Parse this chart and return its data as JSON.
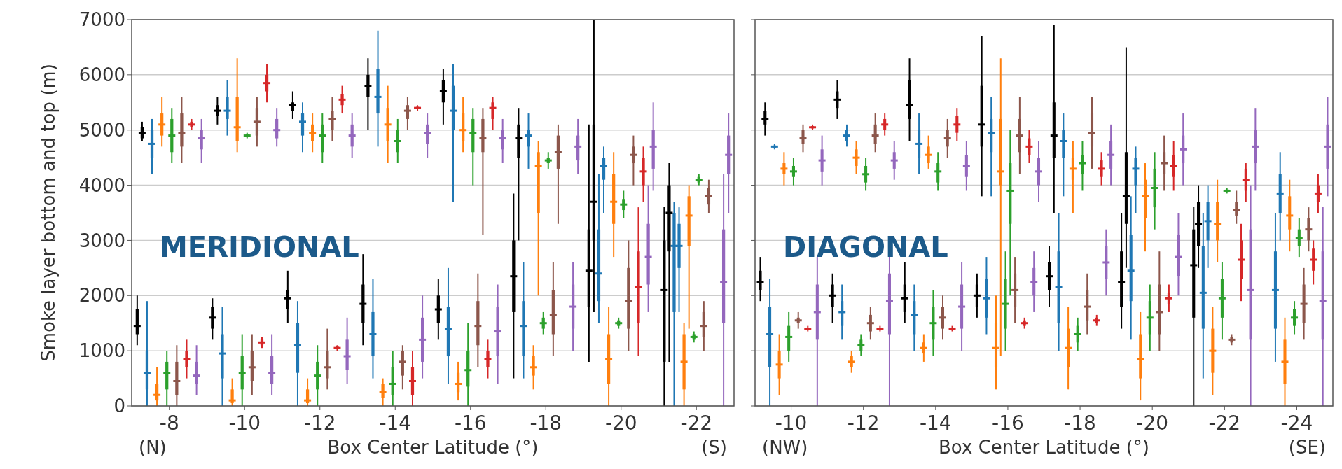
{
  "chart_data": [
    {
      "type": "box",
      "xlabel": "Box Center Latitude (°)",
      "ylabel": "Smoke layer bottom and top (m)",
      "annotations": [
        "(N)",
        "(S)",
        "MERIDIONAL"
      ],
      "categories": [
        "-8",
        "-10",
        "-12",
        "-14",
        "-16",
        "-18",
        "-20",
        "-22"
      ],
      "ylim": [
        0,
        7000
      ],
      "yticks": [
        0,
        1000,
        2000,
        3000,
        4000,
        5000,
        6000,
        7000
      ],
      "grid": "y",
      "series": [
        {
          "color": "#000000",
          "boxes": [
            {
              "low": 1100,
              "q1": 1300,
              "median": 1450,
              "q3": 1750,
              "high": 2000
            },
            {
              "low": 1200,
              "q1": 1400,
              "median": 1600,
              "q3": 1800,
              "high": 1950
            },
            {
              "low": 1500,
              "q1": 1750,
              "median": 1950,
              "q3": 2100,
              "high": 2450
            },
            {
              "low": 1100,
              "q1": 1500,
              "median": 1850,
              "q3": 2200,
              "high": 2750
            },
            {
              "low": 1200,
              "q1": 1500,
              "median": 1750,
              "q3": 2000,
              "high": 2300
            },
            {
              "low": 500,
              "q1": 1700,
              "median": 2350,
              "q3": 3000,
              "high": 3850
            },
            {
              "low": 800,
              "q1": 1800,
              "median": 2450,
              "q3": 3200,
              "high": 5100
            },
            {
              "low": 0,
              "q1": 800,
              "median": 2100,
              "q3": 3000,
              "high": 3600
            }
          ]
        },
        {
          "color": "#1f77b4",
          "boxes": [
            {
              "low": 0,
              "q1": 300,
              "median": 600,
              "q3": 1000,
              "high": 1900
            },
            {
              "low": 0,
              "q1": 500,
              "median": 950,
              "q3": 1300,
              "high": 1800
            },
            {
              "low": 0,
              "q1": 600,
              "median": 1100,
              "q3": 1500,
              "high": 1900
            },
            {
              "low": 500,
              "q1": 900,
              "median": 1300,
              "q3": 1700,
              "high": 2300
            },
            {
              "low": 400,
              "q1": 900,
              "median": 1400,
              "q3": 1800,
              "high": 2500
            },
            {
              "low": 500,
              "q1": 900,
              "median": 1450,
              "q3": 1900,
              "high": 2600
            },
            {
              "low": 1500,
              "q1": 1900,
              "median": 2400,
              "q3": 3200,
              "high": 4200
            },
            {
              "low": 0,
              "q1": 1700,
              "median": 2900,
              "q3": 3500,
              "high": 3700
            }
          ]
        },
        {
          "color": "#ff7f0e",
          "boxes": [
            {
              "low": 0,
              "q1": 100,
              "median": 200,
              "q3": 400,
              "high": 700
            },
            {
              "low": 0,
              "q1": 50,
              "median": 100,
              "q3": 300,
              "high": 500
            },
            {
              "low": 0,
              "q1": 50,
              "median": 100,
              "q3": 300,
              "high": 500
            },
            {
              "low": 0,
              "q1": 150,
              "median": 250,
              "q3": 400,
              "high": 500
            },
            {
              "low": 100,
              "q1": 250,
              "median": 400,
              "q3": 600,
              "high": 800
            },
            {
              "low": 300,
              "q1": 550,
              "median": 700,
              "q3": 900,
              "high": 1100
            },
            {
              "low": 0,
              "q1": 400,
              "median": 850,
              "q3": 1300,
              "high": 1800
            },
            {
              "low": 0,
              "q1": 300,
              "median": 800,
              "q3": 1300,
              "high": 1500
            }
          ]
        },
        {
          "color": "#2ca02c",
          "boxes": [
            {
              "low": 0,
              "q1": 300,
              "median": 600,
              "q3": 800,
              "high": 1000
            },
            {
              "low": 0,
              "q1": 300,
              "median": 600,
              "q3": 900,
              "high": 1300
            },
            {
              "low": 0,
              "q1": 300,
              "median": 550,
              "q3": 800,
              "high": 1100
            },
            {
              "low": 0,
              "q1": 200,
              "median": 400,
              "q3": 700,
              "high": 1000
            },
            {
              "low": 0,
              "q1": 350,
              "median": 650,
              "q3": 1000,
              "high": 1500
            },
            {
              "low": 1300,
              "q1": 1400,
              "median": 1500,
              "q3": 1600,
              "high": 1700
            },
            {
              "low": 1400,
              "q1": 1450,
              "median": 1500,
              "q3": 1550,
              "high": 1600
            },
            {
              "low": 1150,
              "q1": 1200,
              "median": 1250,
              "q3": 1300,
              "high": 1350
            }
          ]
        },
        {
          "color": "#8c564b",
          "boxes": [
            {
              "low": 0,
              "q1": 200,
              "median": 450,
              "q3": 800,
              "high": 1100
            },
            {
              "low": 200,
              "q1": 450,
              "median": 700,
              "q3": 1000,
              "high": 1300
            },
            {
              "low": 300,
              "q1": 500,
              "median": 700,
              "q3": 1000,
              "high": 1400
            },
            {
              "low": 300,
              "q1": 550,
              "median": 800,
              "q3": 1000,
              "high": 1100
            },
            {
              "low": 700,
              "q1": 1100,
              "median": 1450,
              "q3": 1900,
              "high": 2400
            },
            {
              "low": 900,
              "q1": 1300,
              "median": 1650,
              "q3": 2100,
              "high": 2600
            },
            {
              "low": 1000,
              "q1": 1400,
              "median": 1900,
              "q3": 2500,
              "high": 3000
            },
            {
              "low": 1000,
              "q1": 1250,
              "median": 1450,
              "q3": 1700,
              "high": 1900
            }
          ]
        },
        {
          "color": "#d62728",
          "boxes": [
            {
              "low": 500,
              "q1": 700,
              "median": 850,
              "q3": 1000,
              "high": 1200
            },
            {
              "low": 1050,
              "q1": 1100,
              "median": 1150,
              "q3": 1200,
              "high": 1250
            },
            {
              "low": 1000,
              "q1": 1030,
              "median": 1050,
              "q3": 1080,
              "high": 1100
            },
            {
              "low": 0,
              "q1": 200,
              "median": 450,
              "q3": 700,
              "high": 1000
            },
            {
              "low": 500,
              "q1": 700,
              "median": 850,
              "q3": 1000,
              "high": 1200
            },
            null,
            {
              "low": 900,
              "q1": 1500,
              "median": 2150,
              "q3": 2800,
              "high": 3600
            },
            null
          ]
        },
        {
          "color": "#9467bd",
          "boxes": [
            {
              "low": 200,
              "q1": 400,
              "median": 550,
              "q3": 800,
              "high": 1100
            },
            {
              "low": 200,
              "q1": 400,
              "median": 600,
              "q3": 900,
              "high": 1300
            },
            {
              "low": 400,
              "q1": 650,
              "median": 900,
              "q3": 1200,
              "high": 1600
            },
            {
              "low": 500,
              "q1": 800,
              "median": 1200,
              "q3": 1600,
              "high": 2000
            },
            {
              "low": 400,
              "q1": 900,
              "median": 1350,
              "q3": 1800,
              "high": 2200
            },
            {
              "low": 1000,
              "q1": 1400,
              "median": 1800,
              "q3": 2200,
              "high": 2600
            },
            {
              "low": 1700,
              "q1": 2200,
              "median": 2700,
              "q3": 3300,
              "high": 4000
            },
            {
              "low": 0,
              "q1": 1500,
              "median": 2250,
              "q3": 3200,
              "high": 4200
            }
          ]
        },
        {
          "color": "#000000",
          "boxes": [
            {
              "low": 4800,
              "q1": 4850,
              "median": 4950,
              "q3": 5050,
              "high": 5150
            },
            {
              "low": 5100,
              "q1": 5250,
              "median": 5350,
              "q3": 5450,
              "high": 5600
            },
            {
              "low": 5200,
              "q1": 5350,
              "median": 5450,
              "q3": 5500,
              "high": 5700
            },
            {
              "low": 5000,
              "q1": 5600,
              "median": 5800,
              "q3": 6000,
              "high": 6300
            },
            {
              "low": 5100,
              "q1": 5500,
              "median": 5700,
              "q3": 5900,
              "high": 6100
            },
            {
              "low": 3000,
              "q1": 4500,
              "median": 4850,
              "q3": 5100,
              "high": 5400
            },
            {
              "low": 1700,
              "q1": 3000,
              "median": 3700,
              "q3": 5100,
              "high": 7000
            },
            {
              "low": 800,
              "q1": 2800,
              "median": 3500,
              "q3": 4000,
              "high": 4400
            }
          ]
        },
        {
          "color": "#1f77b4",
          "boxes": [
            {
              "low": 4200,
              "q1": 4500,
              "median": 4750,
              "q3": 5000,
              "high": 5200
            },
            {
              "low": 4900,
              "q1": 5200,
              "median": 5350,
              "q3": 5600,
              "high": 5900
            },
            {
              "low": 4600,
              "q1": 4900,
              "median": 5150,
              "q3": 5300,
              "high": 5500
            },
            {
              "low": 4700,
              "q1": 5300,
              "median": 5600,
              "q3": 6100,
              "high": 6800
            },
            {
              "low": 3700,
              "q1": 5000,
              "median": 5350,
              "q3": 5800,
              "high": 6200
            },
            {
              "low": 4300,
              "q1": 4700,
              "median": 4900,
              "q3": 5000,
              "high": 5300
            },
            {
              "low": 3500,
              "q1": 4100,
              "median": 4350,
              "q3": 4500,
              "high": 4700
            },
            {
              "low": 1700,
              "q1": 2500,
              "median": 2900,
              "q3": 3300,
              "high": 3600
            }
          ]
        },
        {
          "color": "#ff7f0e",
          "boxes": [
            {
              "low": 4700,
              "q1": 4900,
              "median": 5100,
              "q3": 5300,
              "high": 5600
            },
            {
              "low": 4600,
              "q1": 4800,
              "median": 5050,
              "q3": 5600,
              "high": 6300
            },
            {
              "low": 4600,
              "q1": 4800,
              "median": 4950,
              "q3": 5100,
              "high": 5300
            },
            {
              "low": 4400,
              "q1": 4800,
              "median": 5100,
              "q3": 5400,
              "high": 5800
            },
            {
              "low": 4600,
              "q1": 4800,
              "median": 5000,
              "q3": 5300,
              "high": 5600
            },
            {
              "low": 2000,
              "q1": 3500,
              "median": 4350,
              "q3": 4600,
              "high": 4800
            },
            {
              "low": 2700,
              "q1": 3300,
              "median": 3700,
              "q3": 4200,
              "high": 4600
            },
            {
              "low": 1400,
              "q1": 2900,
              "median": 3450,
              "q3": 3800,
              "high": 4000
            }
          ]
        },
        {
          "color": "#2ca02c",
          "boxes": [
            {
              "low": 4400,
              "q1": 4600,
              "median": 4900,
              "q3": 5200,
              "high": 5400
            },
            {
              "low": 4850,
              "q1": 4870,
              "median": 4900,
              "q3": 4930,
              "high": 4950
            },
            {
              "low": 4400,
              "q1": 4600,
              "median": 4900,
              "q3": 5100,
              "high": 5300
            },
            {
              "low": 4400,
              "q1": 4600,
              "median": 4800,
              "q3": 5000,
              "high": 5200
            },
            {
              "low": 4000,
              "q1": 4600,
              "median": 4950,
              "q3": 5200,
              "high": 5400
            },
            {
              "low": 4300,
              "q1": 4400,
              "median": 4450,
              "q3": 4500,
              "high": 4600
            },
            {
              "low": 3400,
              "q1": 3550,
              "median": 3650,
              "q3": 3750,
              "high": 3900
            },
            {
              "low": 4000,
              "q1": 4050,
              "median": 4100,
              "q3": 4150,
              "high": 4200
            }
          ]
        },
        {
          "color": "#8c564b",
          "boxes": [
            {
              "low": 4400,
              "q1": 4700,
              "median": 4950,
              "q3": 5300,
              "high": 5600
            },
            {
              "low": 4700,
              "q1": 4900,
              "median": 5150,
              "q3": 5400,
              "high": 5600
            },
            {
              "low": 4800,
              "q1": 5000,
              "median": 5200,
              "q3": 5350,
              "high": 5600
            },
            {
              "low": 5000,
              "q1": 5200,
              "median": 5350,
              "q3": 5450,
              "high": 5600
            },
            {
              "low": 3100,
              "q1": 4600,
              "median": 4850,
              "q3": 5200,
              "high": 5400
            },
            {
              "low": 3300,
              "q1": 4300,
              "median": 4600,
              "q3": 4900,
              "high": 5100
            },
            {
              "low": 4000,
              "q1": 4400,
              "median": 4550,
              "q3": 4700,
              "high": 4900
            },
            {
              "low": 3500,
              "q1": 3650,
              "median": 3800,
              "q3": 3950,
              "high": 4100
            }
          ]
        },
        {
          "color": "#d62728",
          "boxes": [
            {
              "low": 5000,
              "q1": 5050,
              "median": 5100,
              "q3": 5150,
              "high": 5200
            },
            {
              "low": 5500,
              "q1": 5700,
              "median": 5850,
              "q3": 6000,
              "high": 6200
            },
            {
              "low": 5300,
              "q1": 5450,
              "median": 5550,
              "q3": 5650,
              "high": 5800
            },
            {
              "low": 5350,
              "q1": 5380,
              "median": 5400,
              "q3": 5420,
              "high": 5450
            },
            {
              "low": 5000,
              "q1": 5200,
              "median": 5400,
              "q3": 5500,
              "high": 5600
            },
            null,
            {
              "low": 3700,
              "q1": 4000,
              "median": 4250,
              "q3": 4500,
              "high": 4700
            },
            null
          ]
        },
        {
          "color": "#9467bd",
          "boxes": [
            {
              "low": 4400,
              "q1": 4650,
              "median": 4850,
              "q3": 5000,
              "high": 5200
            },
            {
              "low": 4700,
              "q1": 4850,
              "median": 5000,
              "q3": 5200,
              "high": 5400
            },
            {
              "low": 4500,
              "q1": 4700,
              "median": 4900,
              "q3": 5100,
              "high": 5300
            },
            {
              "low": 4500,
              "q1": 4750,
              "median": 4950,
              "q3": 5100,
              "high": 5300
            },
            {
              "low": 4400,
              "q1": 4650,
              "median": 4850,
              "q3": 5000,
              "high": 5200
            },
            {
              "low": 4200,
              "q1": 4450,
              "median": 4700,
              "q3": 4900,
              "high": 5200
            },
            {
              "low": 3900,
              "q1": 4300,
              "median": 4700,
              "q3": 5000,
              "high": 5500
            },
            {
              "low": 3500,
              "q1": 4200,
              "median": 4550,
              "q3": 4900,
              "high": 5300
            }
          ]
        }
      ]
    },
    {
      "type": "box",
      "xlabel": "Box Center Latitude (°)",
      "annotations": [
        "(NW)",
        "(SE)",
        "DIAGONAL"
      ],
      "categories": [
        "-10",
        "-12",
        "-14",
        "-16",
        "-18",
        "-20",
        "-22",
        "-24"
      ],
      "ylim": [
        0,
        7000
      ],
      "yticks": [
        0,
        1000,
        2000,
        3000,
        4000,
        5000,
        6000,
        7000
      ],
      "grid": "y",
      "tick_labels": "x",
      "series": [
        {
          "color": "#000000",
          "boxes": [
            {
              "low": 1900,
              "q1": 2100,
              "median": 2250,
              "q3": 2450,
              "high": 2700
            },
            {
              "low": 1500,
              "q1": 1800,
              "median": 2000,
              "q3": 2200,
              "high": 2400
            },
            {
              "low": 1500,
              "q1": 1700,
              "median": 1950,
              "q3": 2200,
              "high": 2600
            },
            {
              "low": 1600,
              "q1": 1800,
              "median": 2000,
              "q3": 2200,
              "high": 2400
            },
            {
              "low": 1800,
              "q1": 2100,
              "median": 2350,
              "q3": 2600,
              "high": 2900
            },
            {
              "low": 1400,
              "q1": 1800,
              "median": 2250,
              "q3": 2800,
              "high": 3500
            },
            {
              "low": 0,
              "q1": 1600,
              "median": 2550,
              "q3": 3200,
              "high": 3600
            },
            null
          ]
        },
        {
          "color": "#1f77b4",
          "boxes": [
            {
              "low": 0,
              "q1": 700,
              "median": 1300,
              "q3": 1800,
              "high": 2300
            },
            {
              "low": 1200,
              "q1": 1450,
              "median": 1700,
              "q3": 1900,
              "high": 2200
            },
            {
              "low": 1000,
              "q1": 1300,
              "median": 1650,
              "q3": 1900,
              "high": 2200
            },
            {
              "low": 1300,
              "q1": 1600,
              "median": 1950,
              "q3": 2300,
              "high": 2700
            },
            {
              "low": 1000,
              "q1": 1500,
              "median": 2150,
              "q3": 2800,
              "high": 3500
            },
            {
              "low": 1200,
              "q1": 1900,
              "median": 2450,
              "q3": 3100,
              "high": 3800
            },
            {
              "low": 500,
              "q1": 1400,
              "median": 2050,
              "q3": 2900,
              "high": 3500
            },
            {
              "low": 800,
              "q1": 1400,
              "median": 2100,
              "q3": 2800,
              "high": 3500
            }
          ]
        },
        {
          "color": "#ff7f0e",
          "boxes": [
            {
              "low": 200,
              "q1": 500,
              "median": 750,
              "q3": 1000,
              "high": 1300
            },
            {
              "low": 600,
              "q1": 700,
              "median": 800,
              "q3": 900,
              "high": 1000
            },
            {
              "low": 800,
              "q1": 950,
              "median": 1050,
              "q3": 1150,
              "high": 1300
            },
            {
              "low": 300,
              "q1": 700,
              "median": 1050,
              "q3": 1500,
              "high": 2000
            },
            {
              "low": 300,
              "q1": 700,
              "median": 1050,
              "q3": 1400,
              "high": 1800
            },
            {
              "low": 100,
              "q1": 500,
              "median": 850,
              "q3": 1300,
              "high": 1700
            },
            {
              "low": 200,
              "q1": 600,
              "median": 1000,
              "q3": 1400,
              "high": 1800
            },
            {
              "low": 0,
              "q1": 400,
              "median": 800,
              "q3": 1200,
              "high": 1600
            }
          ]
        },
        {
          "color": "#2ca02c",
          "boxes": [
            {
              "low": 800,
              "q1": 1000,
              "median": 1250,
              "q3": 1450,
              "high": 1700
            },
            {
              "low": 900,
              "q1": 1000,
              "median": 1100,
              "q3": 1200,
              "high": 1300
            },
            {
              "low": 900,
              "q1": 1200,
              "median": 1500,
              "q3": 1800,
              "high": 2100
            },
            {
              "low": 1000,
              "q1": 1400,
              "median": 1850,
              "q3": 2300,
              "high": 2800
            },
            {
              "low": 1000,
              "q1": 1150,
              "median": 1300,
              "q3": 1450,
              "high": 1600
            },
            {
              "low": 1000,
              "q1": 1300,
              "median": 1600,
              "q3": 1900,
              "high": 2200
            },
            {
              "low": 1200,
              "q1": 1600,
              "median": 1950,
              "q3": 2300,
              "high": 2600
            },
            {
              "low": 1300,
              "q1": 1450,
              "median": 1600,
              "q3": 1750,
              "high": 1900
            }
          ]
        },
        {
          "color": "#8c564b",
          "boxes": [
            {
              "low": 1400,
              "q1": 1500,
              "median": 1550,
              "q3": 1600,
              "high": 1700
            },
            {
              "low": 1200,
              "q1": 1350,
              "median": 1500,
              "q3": 1650,
              "high": 1800
            },
            {
              "low": 1200,
              "q1": 1400,
              "median": 1600,
              "q3": 1800,
              "high": 2000
            },
            {
              "low": 1500,
              "q1": 1800,
              "median": 2100,
              "q3": 2400,
              "high": 2700
            },
            {
              "low": 1300,
              "q1": 1550,
              "median": 1800,
              "q3": 2100,
              "high": 2400
            },
            {
              "low": 1000,
              "q1": 1300,
              "median": 1700,
              "q3": 2200,
              "high": 2800
            },
            {
              "low": 1100,
              "q1": 1150,
              "median": 1200,
              "q3": 1250,
              "high": 1300
            },
            {
              "low": 1200,
              "q1": 1500,
              "median": 1850,
              "q3": 2200,
              "high": 2500
            }
          ]
        },
        {
          "color": "#d62728",
          "boxes": [
            {
              "low": 1350,
              "q1": 1380,
              "median": 1400,
              "q3": 1420,
              "high": 1450
            },
            {
              "low": 1350,
              "q1": 1380,
              "median": 1400,
              "q3": 1420,
              "high": 1450
            },
            {
              "low": 1350,
              "q1": 1380,
              "median": 1400,
              "q3": 1420,
              "high": 1450
            },
            {
              "low": 1400,
              "q1": 1450,
              "median": 1500,
              "q3": 1550,
              "high": 1600
            },
            {
              "low": 1450,
              "q1": 1500,
              "median": 1550,
              "q3": 1600,
              "high": 1650
            },
            {
              "low": 1700,
              "q1": 1850,
              "median": 1950,
              "q3": 2050,
              "high": 2200
            },
            {
              "low": 1900,
              "q1": 2300,
              "median": 2650,
              "q3": 3000,
              "high": 3300
            },
            {
              "low": 2200,
              "q1": 2450,
              "median": 2650,
              "q3": 2850,
              "high": 3000
            }
          ]
        },
        {
          "color": "#9467bd",
          "boxes": [
            {
              "low": 0,
              "q1": 1200,
              "median": 1700,
              "q3": 2200,
              "high": 2700
            },
            {
              "low": 0,
              "q1": 1300,
              "median": 1900,
              "q3": 2400,
              "high": 2800
            },
            {
              "low": 1000,
              "q1": 1400,
              "median": 1800,
              "q3": 2200,
              "high": 2600
            },
            {
              "low": 1700,
              "q1": 2000,
              "median": 2250,
              "q3": 2500,
              "high": 2800
            },
            {
              "low": 2000,
              "q1": 2300,
              "median": 2600,
              "q3": 2900,
              "high": 3200
            },
            {
              "low": 2000,
              "q1": 2350,
              "median": 2700,
              "q3": 3100,
              "high": 3500
            },
            {
              "low": 0,
              "q1": 1200,
              "median": 2100,
              "q3": 3200,
              "high": 4000
            },
            {
              "low": 0,
              "q1": 1200,
              "median": 1900,
              "q3": 2800,
              "high": 3600
            }
          ]
        },
        {
          "color": "#000000",
          "boxes": [
            {
              "low": 4900,
              "q1": 5100,
              "median": 5200,
              "q3": 5350,
              "high": 5500
            },
            {
              "low": 5200,
              "q1": 5400,
              "median": 5550,
              "q3": 5700,
              "high": 5900
            },
            {
              "low": 4800,
              "q1": 5200,
              "median": 5450,
              "q3": 5900,
              "high": 6300
            },
            {
              "low": 3800,
              "q1": 4700,
              "median": 5100,
              "q3": 5800,
              "high": 6700
            },
            {
              "low": 3500,
              "q1": 4500,
              "median": 4900,
              "q3": 5500,
              "high": 6900
            },
            {
              "low": 2500,
              "q1": 3300,
              "median": 3800,
              "q3": 4600,
              "high": 6500
            },
            {
              "low": 2500,
              "q1": 2900,
              "median": 3300,
              "q3": 3700,
              "high": 4000
            },
            null
          ]
        },
        {
          "color": "#1f77b4",
          "boxes": [
            {
              "low": 4650,
              "q1": 4680,
              "median": 4700,
              "q3": 4720,
              "high": 4750
            },
            {
              "low": 4700,
              "q1": 4800,
              "median": 4900,
              "q3": 5000,
              "high": 5100
            },
            {
              "low": 4200,
              "q1": 4500,
              "median": 4750,
              "q3": 5000,
              "high": 5300
            },
            {
              "low": 3800,
              "q1": 4600,
              "median": 4950,
              "q3": 5200,
              "high": 5600
            },
            {
              "low": 3800,
              "q1": 4500,
              "median": 4800,
              "q3": 5000,
              "high": 5300
            },
            {
              "low": 3500,
              "q1": 4000,
              "median": 4300,
              "q3": 4500,
              "high": 4700
            },
            {
              "low": 2500,
              "q1": 3000,
              "median": 3350,
              "q3": 3700,
              "high": 4000
            },
            {
              "low": 3000,
              "q1": 3500,
              "median": 3850,
              "q3": 4200,
              "high": 4600
            }
          ]
        },
        {
          "color": "#ff7f0e",
          "boxes": [
            {
              "low": 4000,
              "q1": 4200,
              "median": 4300,
              "q3": 4400,
              "high": 4600
            },
            {
              "low": 4200,
              "q1": 4350,
              "median": 4500,
              "q3": 4650,
              "high": 4800
            },
            {
              "low": 4300,
              "q1": 4400,
              "median": 4550,
              "q3": 4700,
              "high": 4900
            },
            {
              "low": 900,
              "q1": 4000,
              "median": 4250,
              "q3": 5200,
              "high": 6300
            },
            {
              "low": 3500,
              "q1": 4100,
              "median": 4300,
              "q3": 4500,
              "high": 4800
            },
            {
              "low": 2800,
              "q1": 3400,
              "median": 3800,
              "q3": 4100,
              "high": 4400
            },
            {
              "low": 2600,
              "q1": 3000,
              "median": 3300,
              "q3": 3700,
              "high": 4100
            },
            {
              "low": 2800,
              "q1": 3200,
              "median": 3450,
              "q3": 3800,
              "high": 4100
            }
          ]
        },
        {
          "color": "#2ca02c",
          "boxes": [
            {
              "low": 4000,
              "q1": 4150,
              "median": 4250,
              "q3": 4350,
              "high": 4500
            },
            {
              "low": 3900,
              "q1": 4050,
              "median": 4200,
              "q3": 4350,
              "high": 4500
            },
            {
              "low": 3900,
              "q1": 4050,
              "median": 4250,
              "q3": 4400,
              "high": 4600
            },
            {
              "low": 2000,
              "q1": 3300,
              "median": 3900,
              "q3": 4400,
              "high": 5000
            },
            {
              "low": 3900,
              "q1": 4200,
              "median": 4400,
              "q3": 4550,
              "high": 4800
            },
            {
              "low": 3200,
              "q1": 3600,
              "median": 3950,
              "q3": 4300,
              "high": 4600
            },
            {
              "low": 3850,
              "q1": 3880,
              "median": 3900,
              "q3": 3920,
              "high": 3950
            },
            {
              "low": 2700,
              "q1": 2900,
              "median": 3050,
              "q3": 3200,
              "high": 3400
            }
          ]
        },
        {
          "color": "#8c564b",
          "boxes": [
            {
              "low": 4600,
              "q1": 4750,
              "median": 4850,
              "q3": 5000,
              "high": 5100
            },
            {
              "low": 4600,
              "q1": 4750,
              "median": 4900,
              "q3": 5100,
              "high": 5300
            },
            {
              "low": 4500,
              "q1": 4700,
              "median": 4850,
              "q3": 5000,
              "high": 5200
            },
            {
              "low": 4200,
              "q1": 4600,
              "median": 4900,
              "q3": 5200,
              "high": 5600
            },
            {
              "low": 4300,
              "q1": 4700,
              "median": 4950,
              "q3": 5300,
              "high": 5600
            },
            {
              "low": 3900,
              "q1": 4200,
              "median": 4400,
              "q3": 4600,
              "high": 4900
            },
            {
              "low": 3300,
              "q1": 3450,
              "median": 3550,
              "q3": 3700,
              "high": 3900
            },
            {
              "low": 2800,
              "q1": 3000,
              "median": 3200,
              "q3": 3400,
              "high": 3600
            }
          ]
        },
        {
          "color": "#d62728",
          "boxes": [
            {
              "low": 5000,
              "q1": 5030,
              "median": 5050,
              "q3": 5070,
              "high": 5100
            },
            {
              "low": 4900,
              "q1": 5000,
              "median": 5100,
              "q3": 5200,
              "high": 5300
            },
            {
              "low": 4800,
              "q1": 4950,
              "median": 5100,
              "q3": 5250,
              "high": 5400
            },
            {
              "low": 4400,
              "q1": 4550,
              "median": 4700,
              "q3": 4850,
              "high": 5000
            },
            {
              "low": 4000,
              "q1": 4150,
              "median": 4300,
              "q3": 4450,
              "high": 4600
            },
            {
              "low": 3900,
              "q1": 4150,
              "median": 4350,
              "q3": 4550,
              "high": 4800
            },
            {
              "low": 3700,
              "q1": 3900,
              "median": 4100,
              "q3": 4300,
              "high": 4400
            },
            {
              "low": 3500,
              "q1": 3700,
              "median": 3850,
              "q3": 4000,
              "high": 4200
            }
          ]
        },
        {
          "color": "#9467bd",
          "boxes": [
            {
              "low": 4000,
              "q1": 4250,
              "median": 4450,
              "q3": 4650,
              "high": 4900
            },
            {
              "low": 4100,
              "q1": 4300,
              "median": 4450,
              "q3": 4600,
              "high": 4800
            },
            {
              "low": 3900,
              "q1": 4150,
              "median": 4350,
              "q3": 4550,
              "high": 4800
            },
            {
              "low": 3700,
              "q1": 4000,
              "median": 4250,
              "q3": 4500,
              "high": 4800
            },
            {
              "low": 4000,
              "q1": 4300,
              "median": 4550,
              "q3": 4800,
              "high": 5100
            },
            {
              "low": 4000,
              "q1": 4400,
              "median": 4650,
              "q3": 4900,
              "high": 5300
            },
            {
              "low": 3900,
              "q1": 4400,
              "median": 4700,
              "q3": 5000,
              "high": 5400
            },
            {
              "low": 3800,
              "q1": 4300,
              "median": 4700,
              "q3": 5100,
              "high": 5600
            }
          ]
        }
      ]
    }
  ]
}
